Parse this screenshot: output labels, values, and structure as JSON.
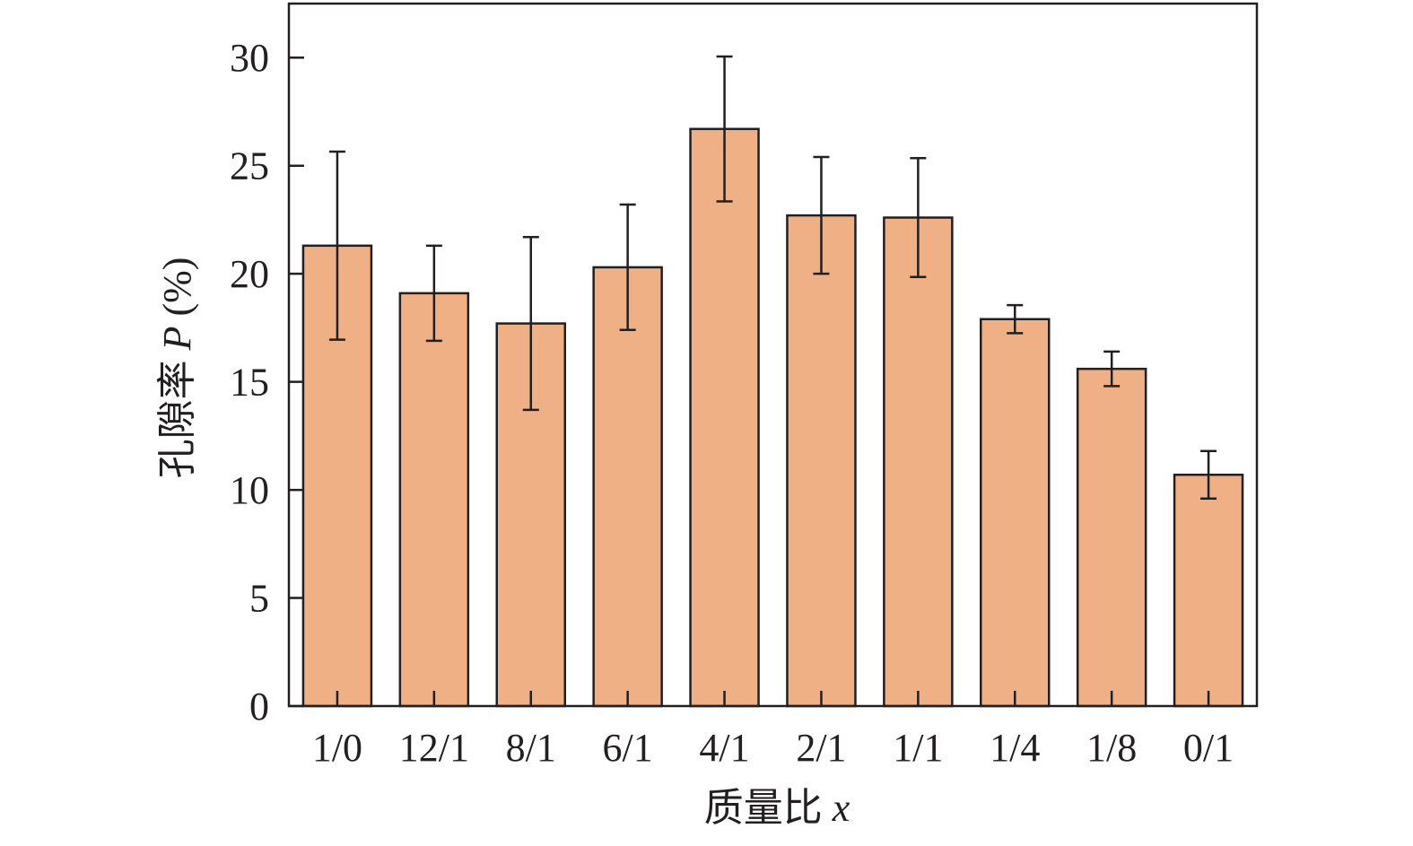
{
  "chart_data": {
    "type": "bar",
    "title": "",
    "xlabel": "质量比 x",
    "xlabel_parts": {
      "text": "质量比 ",
      "var": "x"
    },
    "ylabel": "孔隙率 P (%)",
    "ylabel_parts": {
      "text": "孔隙率 ",
      "var": "P",
      "unit": " (%)"
    },
    "categories": [
      "1/0",
      "12/1",
      "8/1",
      "6/1",
      "4/1",
      "2/1",
      "1/1",
      "1/4",
      "1/8",
      "0/1"
    ],
    "values": [
      21.3,
      19.1,
      17.7,
      20.3,
      26.7,
      22.7,
      22.6,
      17.9,
      15.6,
      10.7
    ],
    "errors": [
      4.35,
      2.2,
      4.0,
      2.9,
      3.35,
      2.7,
      2.75,
      0.65,
      0.8,
      1.1
    ],
    "ylim": [
      0,
      32.5
    ],
    "yticks": [
      0,
      5,
      10,
      15,
      20,
      25,
      30
    ],
    "grid": false,
    "legend": "none",
    "colors": {
      "bar_fill": "#EFB085",
      "bar_stroke": "#231F20",
      "axis": "#231F20"
    }
  }
}
